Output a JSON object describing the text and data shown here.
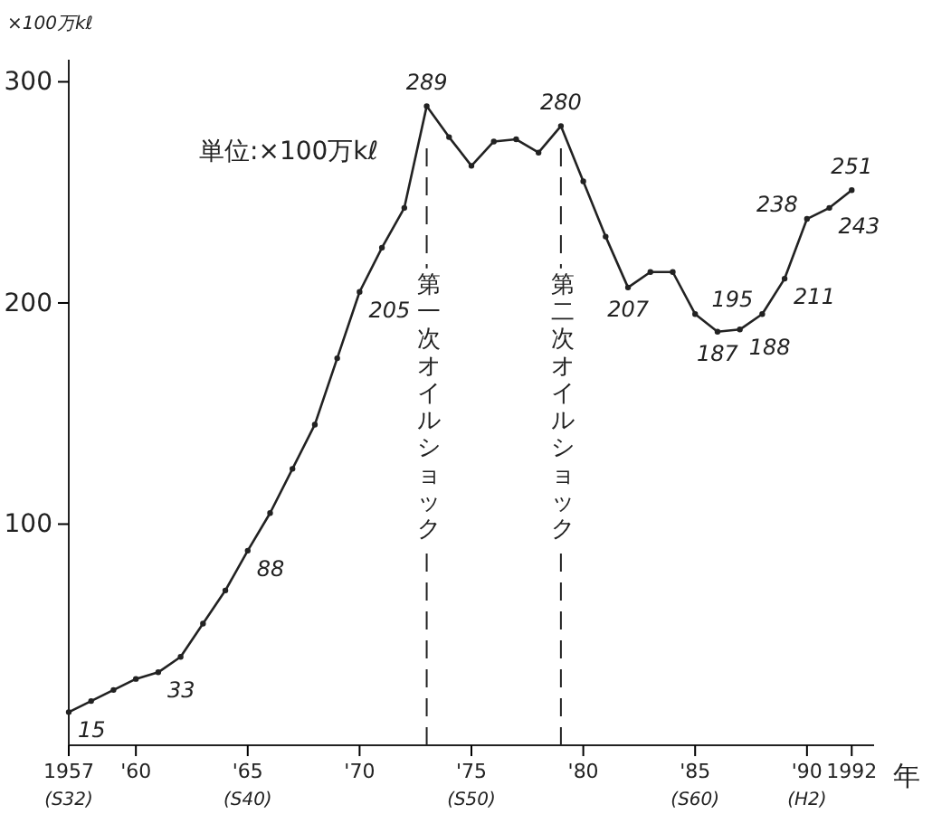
{
  "chart_data": {
    "type": "line",
    "ylabel": "×100万kℓ",
    "xlabel": "年",
    "annotations": [
      "単位:×100万kℓ"
    ],
    "x": [
      1957,
      1958,
      1959,
      1960,
      1961,
      1962,
      1963,
      1964,
      1965,
      1966,
      1967,
      1968,
      1969,
      1970,
      1971,
      1972,
      1973,
      1974,
      1975,
      1976,
      1977,
      1978,
      1979,
      1980,
      1981,
      1982,
      1983,
      1984,
      1985,
      1986,
      1987,
      1988,
      1989,
      1990,
      1991,
      1992
    ],
    "series": [
      {
        "color": "#222222",
        "values": [
          15,
          20,
          25,
          30,
          33,
          40,
          55,
          70,
          88,
          105,
          125,
          145,
          175,
          205,
          225,
          243,
          289,
          275,
          262,
          273,
          274,
          268,
          280,
          255,
          230,
          207,
          214,
          214,
          195,
          187,
          188,
          195,
          211,
          238,
          243,
          251
        ],
        "value_labels": [
          "15",
          null,
          null,
          null,
          "33",
          null,
          null,
          null,
          "88",
          null,
          null,
          null,
          null,
          "205",
          null,
          null,
          "289",
          null,
          null,
          null,
          null,
          null,
          "280",
          null,
          null,
          "207",
          null,
          null,
          null,
          "187",
          "188",
          "195",
          "211",
          "238",
          "243",
          "251"
        ]
      }
    ],
    "xlim": [
      1957,
      1993
    ],
    "ylim": [
      0,
      310
    ],
    "xticks": [
      {
        "value": 1957,
        "label": "1957\n(S32)"
      },
      {
        "value": 1960,
        "label": "'60"
      },
      {
        "value": 1965,
        "label": "'65\n(S40)"
      },
      {
        "value": 1970,
        "label": "'70"
      },
      {
        "value": 1975,
        "label": "'75\n(S50)"
      },
      {
        "value": 1980,
        "label": "'80"
      },
      {
        "value": 1985,
        "label": "'85\n(S60)"
      },
      {
        "value": 1990,
        "label": "'90\n(H2)"
      },
      {
        "value": 1992,
        "label": "1992"
      }
    ],
    "yticks": [
      100,
      200,
      300
    ],
    "ref_lines": [
      {
        "axis": "x",
        "value": 1973,
        "label": "第一次オイルショック",
        "line_style": "dashed"
      },
      {
        "axis": "x",
        "value": 1979,
        "label": "第二次オイルショック",
        "line_style": "dashed"
      }
    ],
    "marker": "circle",
    "line_style": "solid",
    "grid": false
  }
}
